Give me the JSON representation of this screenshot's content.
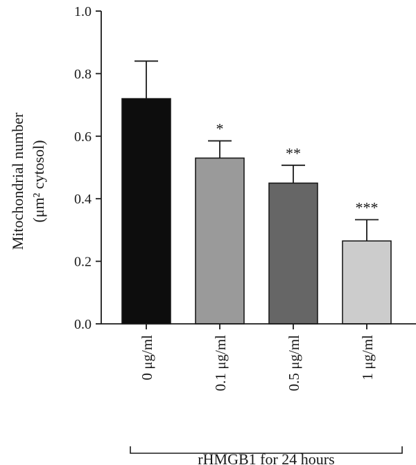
{
  "chart_data": {
    "type": "bar",
    "ylabel": "Mitochondrial number",
    "ylabel_unit": "(μm² cytosol)",
    "ylim": [
      0,
      1.0
    ],
    "yticks": [
      "0.0",
      "0.2",
      "0.4",
      "0.6",
      "0.8",
      "1.0"
    ],
    "categories": [
      "0 μg/ml",
      "0.1 μg/ml",
      "0.5 μg/ml",
      "1 μg/ml"
    ],
    "values": [
      0.72,
      0.53,
      0.45,
      0.265
    ],
    "errors": [
      0.12,
      0.055,
      0.057,
      0.068
    ],
    "significance": [
      "",
      "*",
      "**",
      "***"
    ],
    "bar_colors": [
      "#0d0d0d",
      "#9a9a9a",
      "#666666",
      "#cccccc"
    ],
    "group_label": "rHMGB1 for 24 hours"
  }
}
